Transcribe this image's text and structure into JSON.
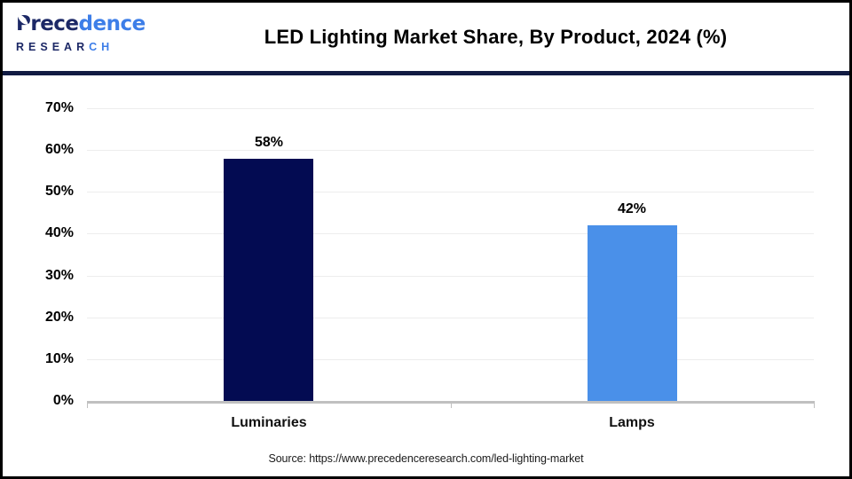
{
  "header": {
    "logo": {
      "line1_dark": "Prece",
      "line1_light": "dence",
      "line2_dark": "RESEAR",
      "line2_light": "CH"
    },
    "title": "LED Lighting Market Share, By Product, 2024 (%)"
  },
  "chart_data": {
    "type": "bar",
    "title": "LED Lighting Market Share, By Product, 2024 (%)",
    "categories": [
      "Luminaries",
      "Lamps"
    ],
    "values": [
      58,
      42
    ],
    "value_labels": [
      "58%",
      "42%"
    ],
    "bar_colors": [
      "#030b52",
      "#4a90e9"
    ],
    "xlabel": "",
    "ylabel": "",
    "ylim": [
      0,
      70
    ],
    "ytick_labels": [
      "0%",
      "10%",
      "20%",
      "30%",
      "40%",
      "50%",
      "60%",
      "70%"
    ],
    "grid": true,
    "legend": false
  },
  "footer": {
    "source": "Source: https://www.precedenceresearch.com/led-lighting-market"
  },
  "colors": {
    "navy": "#030b52",
    "blue": "#4a90e9",
    "separator": "#111b42",
    "grid": "#ededed",
    "axis": "#c0c0c0"
  }
}
